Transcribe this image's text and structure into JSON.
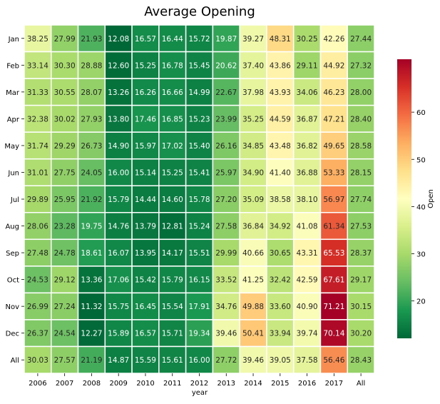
{
  "chart_data": {
    "type": "heatmap",
    "title": "Average Opening",
    "xlabel": "year",
    "ylabel": "",
    "colorbar_label": "Open",
    "colormap": "RdYlGn_r",
    "color_range": [
      12.08,
      71.21
    ],
    "colorbar_ticks": [
      20,
      30,
      40,
      50,
      60
    ],
    "cell_border_color": "#ffffff",
    "columns": [
      "2006",
      "2007",
      "2008",
      "2009",
      "2010",
      "2011",
      "2012",
      "2013",
      "2014",
      "2015",
      "2016",
      "2017",
      "All"
    ],
    "rows": [
      "Jan",
      "Feb",
      "Mar",
      "Apr",
      "May",
      "Jun",
      "Jul",
      "Aug",
      "Sep",
      "Oct",
      "Nov",
      "Dec",
      "All"
    ],
    "values": [
      [
        "38.25",
        "27.99",
        "21.93",
        "12.08",
        "16.57",
        "16.44",
        "15.72",
        "19.87",
        "39.27",
        "48.31",
        "30.25",
        "42.26",
        "27.44"
      ],
      [
        "33.14",
        "30.30",
        "28.88",
        "12.60",
        "15.25",
        "16.78",
        "15.45",
        "20.62",
        "37.40",
        "43.86",
        "29.11",
        "44.92",
        "27.32"
      ],
      [
        "31.33",
        "30.55",
        "28.07",
        "13.26",
        "16.26",
        "16.66",
        "14.99",
        "22.67",
        "37.98",
        "43.93",
        "34.06",
        "46.23",
        "28.00"
      ],
      [
        "32.38",
        "30.02",
        "27.93",
        "13.80",
        "17.46",
        "16.85",
        "15.23",
        "23.99",
        "35.25",
        "44.59",
        "36.87",
        "47.21",
        "28.40"
      ],
      [
        "31.74",
        "29.29",
        "26.73",
        "14.90",
        "15.97",
        "17.02",
        "15.40",
        "26.16",
        "34.85",
        "43.48",
        "36.82",
        "49.65",
        "28.58"
      ],
      [
        "31.01",
        "27.75",
        "24.05",
        "16.00",
        "15.14",
        "15.25",
        "15.41",
        "25.97",
        "34.90",
        "41.40",
        "36.88",
        "53.33",
        "28.15"
      ],
      [
        "29.89",
        "25.95",
        "21.92",
        "15.79",
        "14.44",
        "14.60",
        "15.78",
        "27.20",
        "35.09",
        "38.58",
        "38.10",
        "56.97",
        "27.74"
      ],
      [
        "28.06",
        "23.28",
        "19.75",
        "14.76",
        "13.79",
        "12.81",
        "15.24",
        "27.58",
        "36.84",
        "34.92",
        "41.08",
        "61.34",
        "27.53"
      ],
      [
        "27.48",
        "24.78",
        "18.61",
        "16.07",
        "13.95",
        "14.17",
        "15.51",
        "29.99",
        "40.66",
        "30.65",
        "43.31",
        "65.53",
        "28.37"
      ],
      [
        "24.53",
        "29.12",
        "13.36",
        "17.06",
        "15.42",
        "15.79",
        "16.15",
        "33.52",
        "41.25",
        "32.42",
        "42.59",
        "67.61",
        "29.17"
      ],
      [
        "26.99",
        "27.24",
        "11.32",
        "15.75",
        "16.45",
        "15.54",
        "17.91",
        "34.76",
        "49.88",
        "33.60",
        "40.90",
        "71.21",
        "30.15"
      ],
      [
        "26.37",
        "24.54",
        "12.27",
        "15.89",
        "16.57",
        "15.71",
        "19.34",
        "39.46",
        "50.41",
        "33.94",
        "39.74",
        "70.14",
        "30.20"
      ],
      [
        "30.03",
        "27.57",
        "21.19",
        "14.87",
        "15.59",
        "15.61",
        "16.00",
        "27.72",
        "39.46",
        "39.05",
        "37.58",
        "56.46",
        "28.43"
      ]
    ]
  }
}
